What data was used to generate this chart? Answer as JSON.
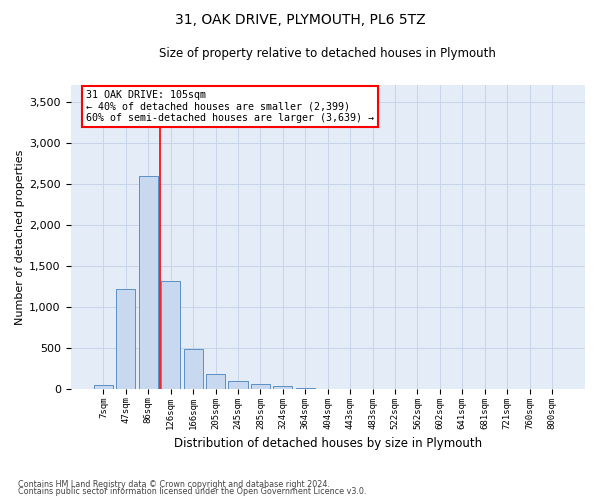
{
  "title1": "31, OAK DRIVE, PLYMOUTH, PL6 5TZ",
  "title2": "Size of property relative to detached houses in Plymouth",
  "xlabel": "Distribution of detached houses by size in Plymouth",
  "ylabel": "Number of detached properties",
  "categories": [
    "7sqm",
    "47sqm",
    "86sqm",
    "126sqm",
    "166sqm",
    "205sqm",
    "245sqm",
    "285sqm",
    "324sqm",
    "364sqm",
    "404sqm",
    "443sqm",
    "483sqm",
    "522sqm",
    "562sqm",
    "602sqm",
    "641sqm",
    "681sqm",
    "721sqm",
    "760sqm",
    "800sqm"
  ],
  "bar_values": [
    50,
    1220,
    2590,
    1310,
    490,
    185,
    95,
    55,
    30,
    10,
    0,
    0,
    0,
    0,
    0,
    0,
    0,
    0,
    0,
    0,
    0
  ],
  "bar_color": "#c8d9ef",
  "bar_edge_color": "#5b8fc4",
  "vline_color": "red",
  "annotation_text": "31 OAK DRIVE: 105sqm\n← 40% of detached houses are smaller (2,399)\n60% of semi-detached houses are larger (3,639) →",
  "annotation_box_color": "white",
  "annotation_box_edge": "red",
  "ylim": [
    0,
    3700
  ],
  "yticks": [
    0,
    500,
    1000,
    1500,
    2000,
    2500,
    3000,
    3500
  ],
  "grid_color": "#c8d4e8",
  "bg_color": "#e4ecf7",
  "footer1": "Contains HM Land Registry data © Crown copyright and database right 2024.",
  "footer2": "Contains public sector information licensed under the Open Government Licence v3.0."
}
